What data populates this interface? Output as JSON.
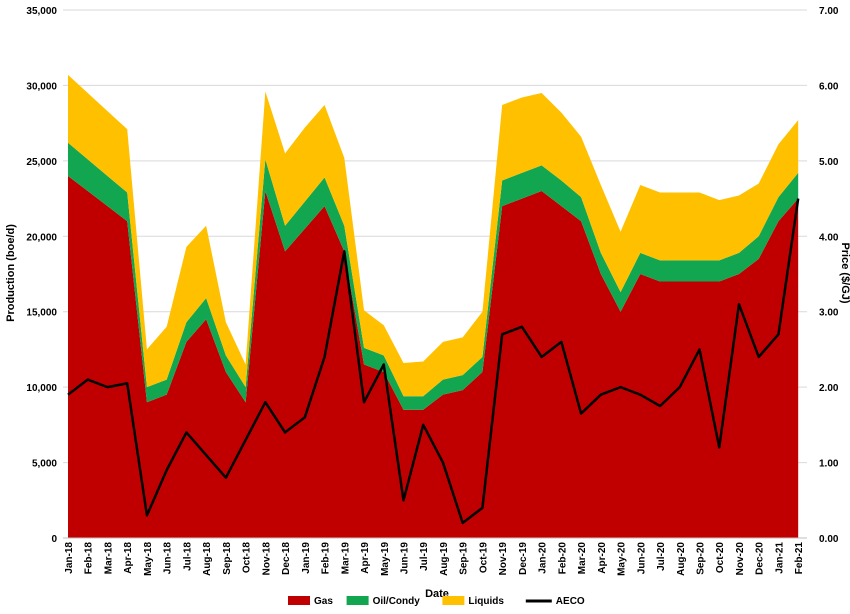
{
  "chart_data": {
    "type": "area",
    "xlabel": "Date",
    "ylabel": "Production (boe/d)",
    "y2label": "Price ($/GJ)",
    "ylim": [
      0,
      35000
    ],
    "y2lim": [
      0,
      7
    ],
    "y_ticks": [
      "0",
      "5,000",
      "10,000",
      "15,000",
      "20,000",
      "25,000",
      "30,000",
      "35,000"
    ],
    "y2_ticks": [
      "0.00",
      "1.00",
      "2.00",
      "3.00",
      "4.00",
      "5.00",
      "6.00",
      "7.00"
    ],
    "grid": true,
    "legend_position": "bottom",
    "colors": {
      "Gas": "#c00000",
      "Oil/Condy": "#12a650",
      "Liquids": "#ffc000",
      "AECO": "#000000"
    },
    "x": [
      "Jan-18",
      "Feb-18",
      "Mar-18",
      "Apr-18",
      "May-18",
      "Jun-18",
      "Jul-18",
      "Aug-18",
      "Sep-18",
      "Oct-18",
      "Nov-18",
      "Dec-18",
      "Jan-19",
      "Feb-19",
      "Mar-19",
      "Apr-19",
      "May-19",
      "Jun-19",
      "Jul-19",
      "Aug-19",
      "Sep-19",
      "Oct-19",
      "Nov-19",
      "Dec-19",
      "Jan-20",
      "Feb-20",
      "Mar-20",
      "Apr-20",
      "May-20",
      "Jun-20",
      "Jul-20",
      "Aug-20",
      "Sep-20",
      "Oct-20",
      "Nov-20",
      "Dec-20",
      "Jan-21",
      "Feb-21"
    ],
    "series": [
      {
        "name": "Gas",
        "values": [
          24000,
          23000,
          22000,
          21000,
          9000,
          9500,
          13000,
          14500,
          11000,
          9000,
          23000,
          19000,
          20500,
          22000,
          19000,
          11500,
          11000,
          8500,
          8500,
          9500,
          9800,
          11000,
          22000,
          22500,
          23000,
          22000,
          21000,
          17500,
          15000,
          17500,
          17000,
          17000,
          17000,
          17000,
          17500,
          18500,
          21000,
          22500
        ]
      },
      {
        "name": "Oil/Condy",
        "values": [
          2200,
          2100,
          2000,
          1900,
          1000,
          1000,
          1300,
          1400,
          1100,
          1000,
          2100,
          1700,
          1800,
          1900,
          1700,
          1100,
          1100,
          900,
          900,
          1000,
          1000,
          1000,
          1700,
          1700,
          1700,
          1700,
          1600,
          1400,
          1300,
          1400,
          1400,
          1400,
          1400,
          1400,
          1400,
          1500,
          1600,
          1700
        ]
      },
      {
        "name": "Liquids",
        "values": [
          4500,
          4400,
          4300,
          4200,
          2500,
          3500,
          5000,
          4800,
          2200,
          1500,
          4500,
          4800,
          4900,
          4800,
          4500,
          2500,
          2000,
          2200,
          2300,
          2500,
          2500,
          3000,
          5000,
          5000,
          4800,
          4500,
          4000,
          4500,
          4000,
          4500,
          4500,
          4500,
          4500,
          4000,
          3800,
          3500,
          3500,
          3500
        ]
      },
      {
        "name": "AECO",
        "axis": "right",
        "values": [
          1.9,
          2.1,
          2.0,
          2.05,
          0.3,
          0.9,
          1.4,
          1.1,
          0.8,
          1.3,
          1.8,
          1.4,
          1.6,
          2.4,
          3.8,
          1.8,
          2.3,
          0.5,
          1.5,
          1.0,
          0.2,
          0.4,
          2.7,
          2.8,
          2.4,
          2.6,
          1.65,
          1.9,
          2.0,
          1.9,
          1.75,
          2.0,
          2.5,
          1.2,
          3.1,
          2.4,
          2.7,
          4.5
        ]
      }
    ]
  }
}
